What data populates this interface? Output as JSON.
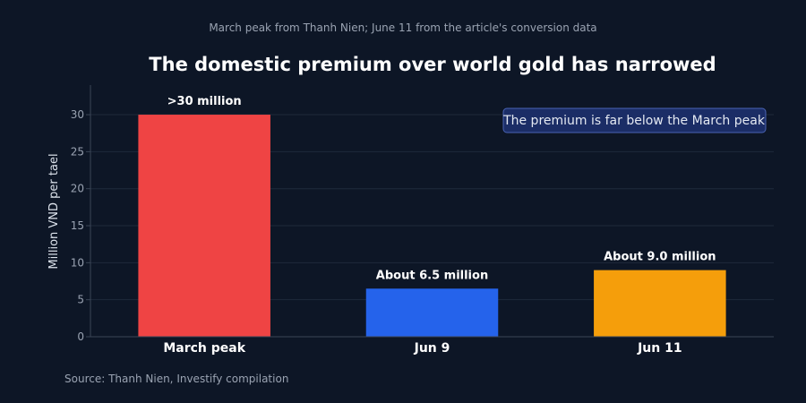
{
  "chart_data": {
    "type": "bar",
    "subtitle": "March peak from Thanh Nien; June 11 from the article's conversion data",
    "title": "The domestic premium over world gold has narrowed",
    "ylabel": "Million VND per tael",
    "xlabel": "",
    "categories": [
      "March peak",
      "Jun 9",
      "Jun 11"
    ],
    "values": [
      30,
      6.5,
      9.0
    ],
    "data_labels": [
      ">30 million",
      "About 6.5 million",
      "About 9.0 million"
    ],
    "colors": [
      "#ef4444",
      "#2563eb",
      "#f59e0b"
    ],
    "ylim": [
      0,
      34
    ],
    "yticks": [
      0,
      5,
      10,
      15,
      20,
      25,
      30
    ],
    "grid": true,
    "annotation": "The premium is far below the March peak",
    "source": "Source: Thanh Nien, Investify compilation"
  }
}
